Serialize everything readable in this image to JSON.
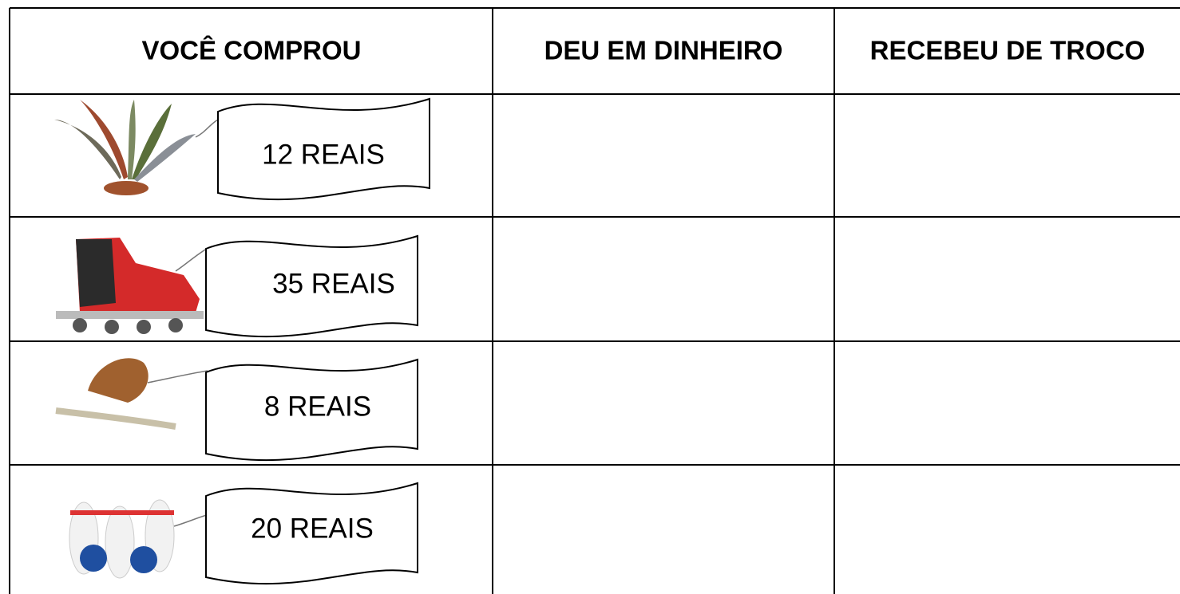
{
  "table": {
    "headers": [
      "VOCÊ COMPROU",
      "DEU EM DINHEIRO",
      "RECEBEU DE TROCO"
    ],
    "rows": [
      {
        "price": "12 REAIS"
      },
      {
        "price": "35 REAIS"
      },
      {
        "price": "8 REAIS"
      },
      {
        "price": "20 REAIS"
      }
    ]
  }
}
